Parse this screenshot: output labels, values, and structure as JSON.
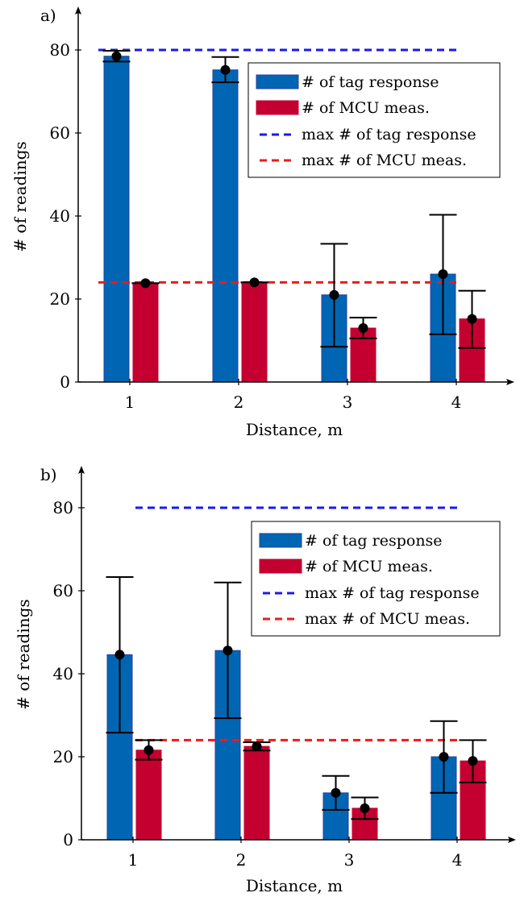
{
  "chart_data": [
    {
      "panel": "a)",
      "type": "bar",
      "xlabel": "Distance, m",
      "ylabel": "# of readings",
      "ylim": [
        0,
        80
      ],
      "yticks": [
        0,
        20,
        40,
        60,
        80
      ],
      "categories": [
        "1",
        "2",
        "3",
        "4"
      ],
      "series": [
        {
          "name": "# of tag response",
          "color": "#0066b3",
          "edge": "#2c3e9e",
          "values": [
            78.5,
            75.2,
            21.0,
            26.0
          ],
          "error_low": [
            77.2,
            72.2,
            8.5,
            11.5
          ],
          "error_high": [
            79.8,
            78.3,
            33.3,
            40.3
          ]
        },
        {
          "name": "# of MCU meas.",
          "color": "#c40030",
          "edge": "#c40030",
          "values": [
            23.8,
            24.0,
            13.0,
            15.2
          ],
          "error_low": [
            23.8,
            24.0,
            10.5,
            8.2
          ],
          "error_high": [
            23.8,
            24.0,
            15.5,
            22.0
          ]
        }
      ],
      "reference_lines": [
        {
          "name": "max # of tag response",
          "value": 80,
          "color": "#1a1aee"
        },
        {
          "name": "max # of MCU meas.",
          "value": 24,
          "color": "#ee1a1a"
        }
      ],
      "legend_position": "top-right"
    },
    {
      "panel": "b)",
      "type": "bar",
      "xlabel": "Distance, m",
      "ylabel": "# of readings",
      "ylim": [
        0,
        80
      ],
      "yticks": [
        0,
        20,
        40,
        60,
        80
      ],
      "categories": [
        "1",
        "2",
        "3",
        "4"
      ],
      "series": [
        {
          "name": "# of tag response",
          "color": "#0066b3",
          "edge": "#2c3e9e",
          "values": [
            44.6,
            45.6,
            11.3,
            20.0
          ],
          "error_low": [
            25.8,
            29.3,
            7.2,
            11.3
          ],
          "error_high": [
            63.3,
            62.0,
            15.4,
            28.6
          ]
        },
        {
          "name": "# of MCU meas.",
          "color": "#c40030",
          "edge": "#c40030",
          "values": [
            21.6,
            22.5,
            7.6,
            19.0
          ],
          "error_low": [
            19.3,
            21.5,
            5.0,
            13.8
          ],
          "error_high": [
            24.0,
            23.5,
            10.2,
            24.0
          ]
        }
      ],
      "reference_lines": [
        {
          "name": "max # of tag response",
          "value": 80,
          "color": "#1a1aee"
        },
        {
          "name": "max # of MCU meas.",
          "value": 24,
          "color": "#ee1a1a"
        }
      ],
      "legend_position": "top-right"
    }
  ]
}
